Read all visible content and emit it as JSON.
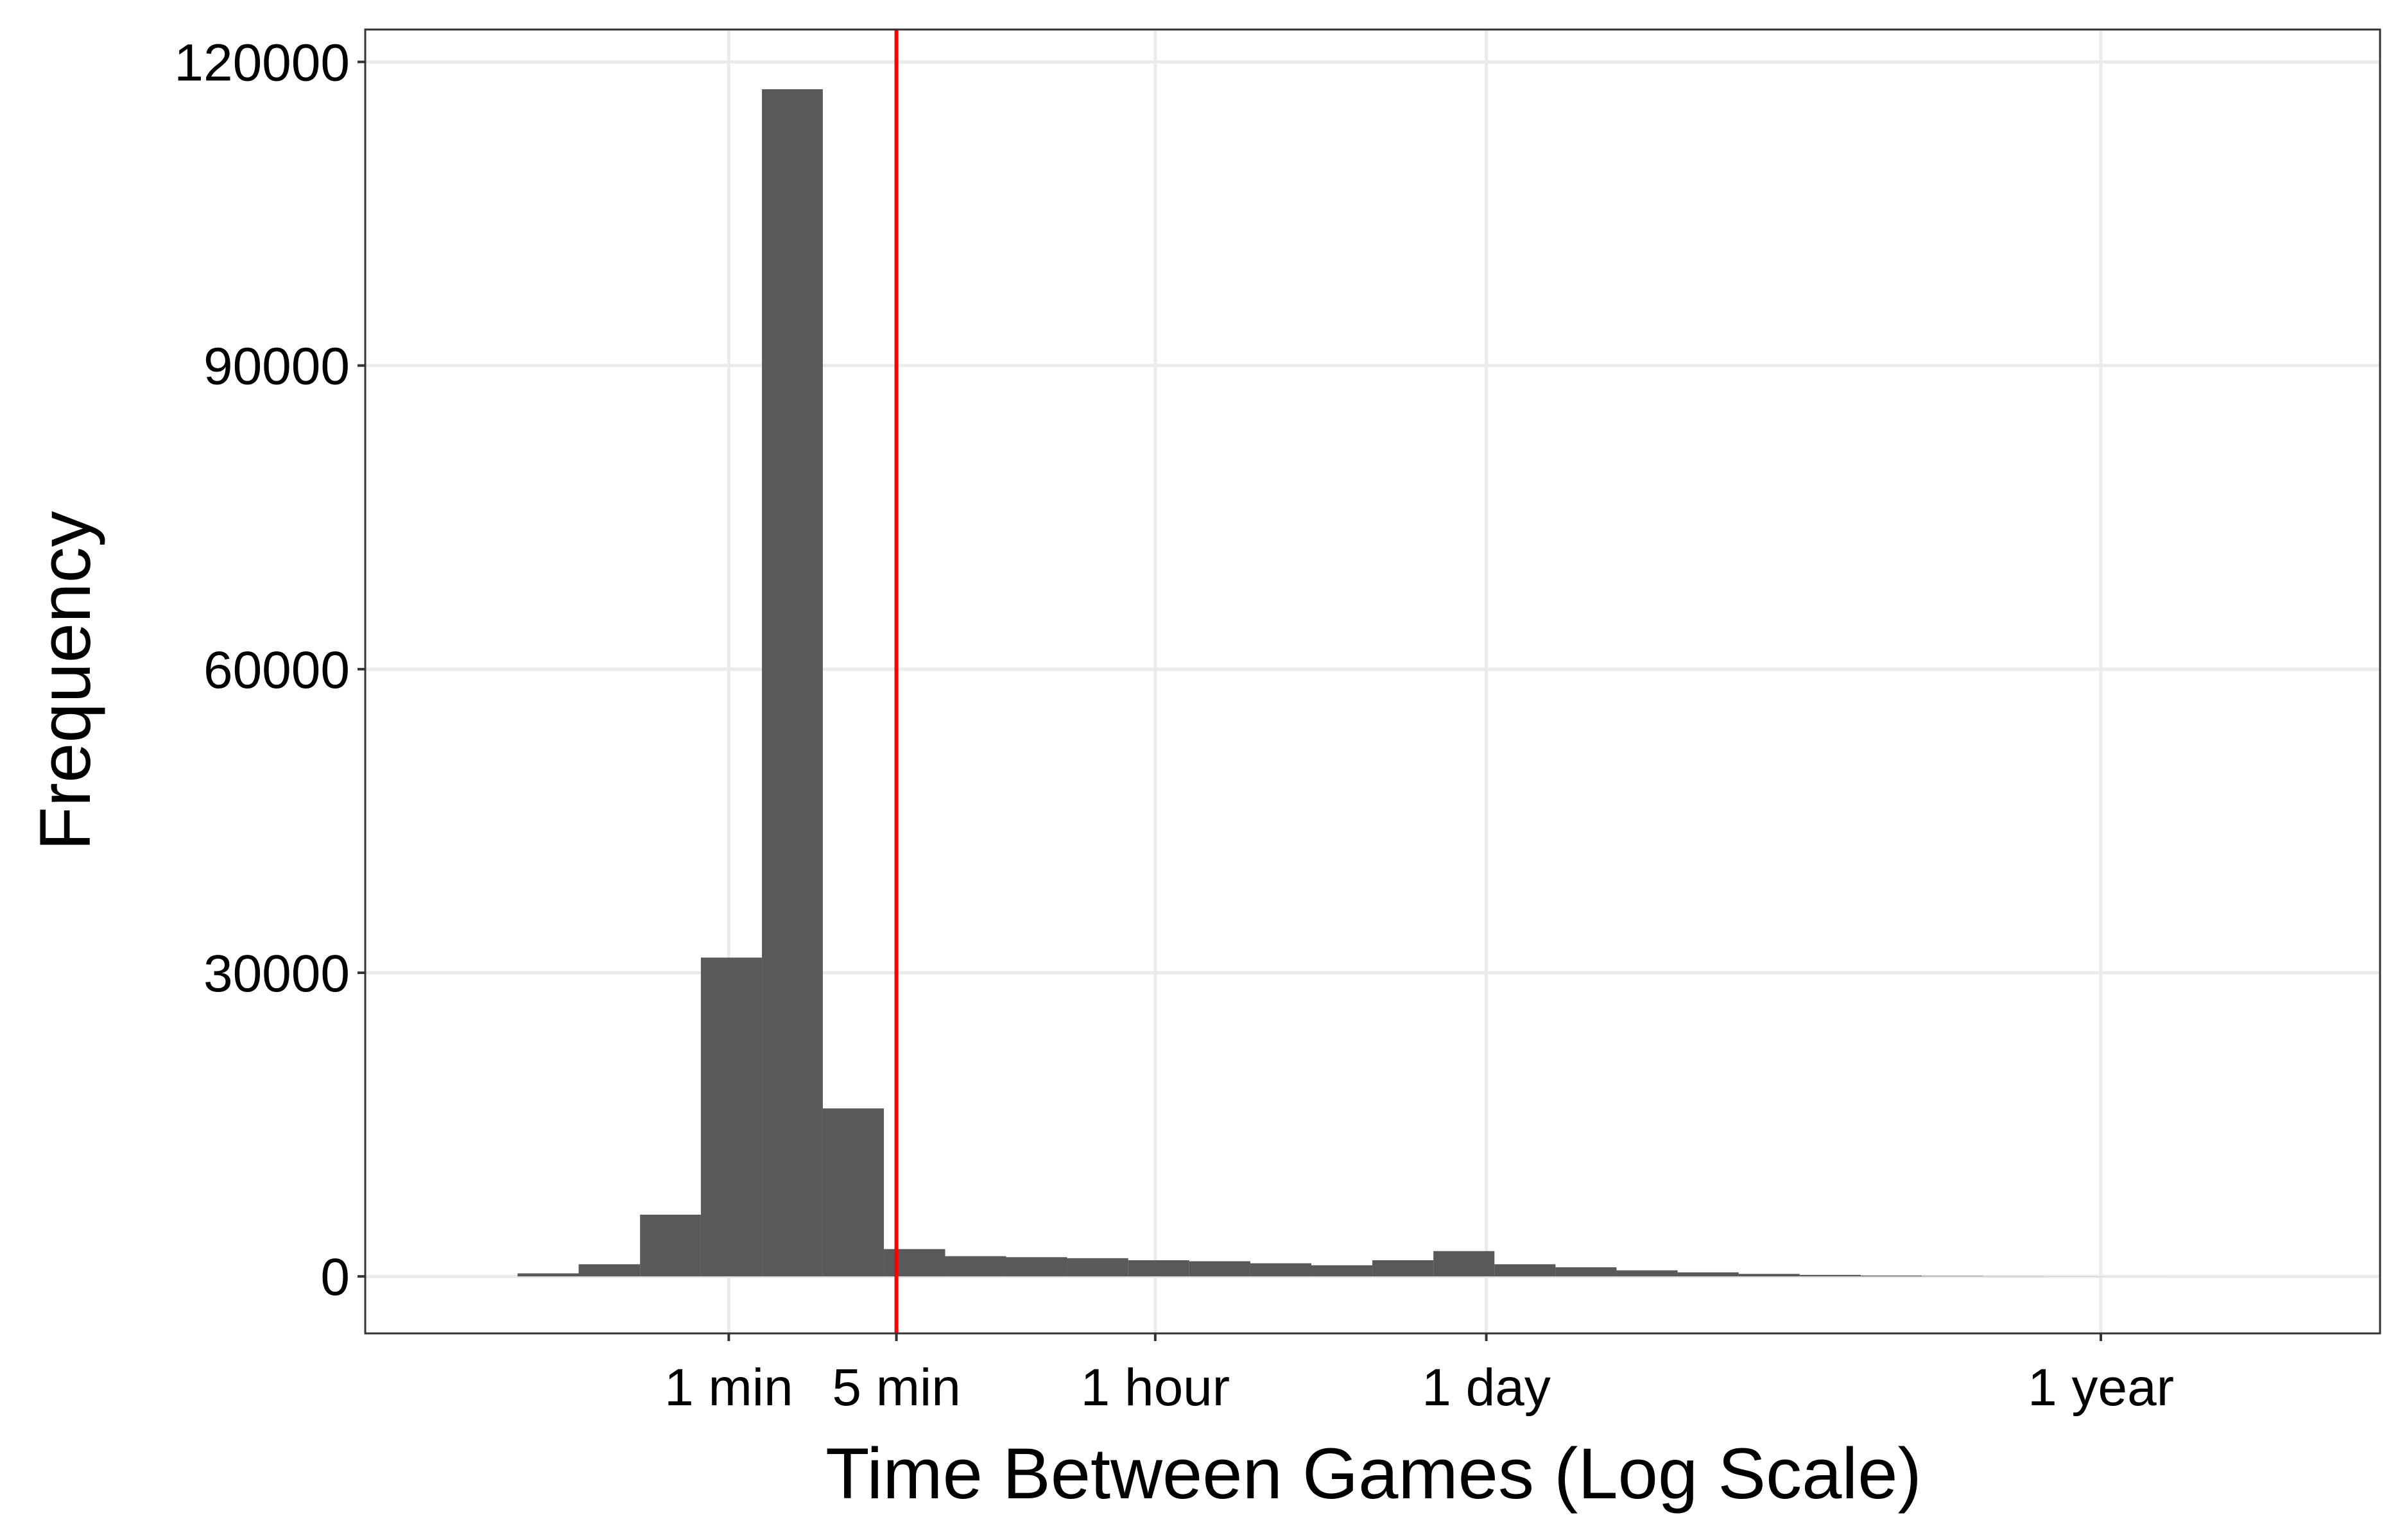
{
  "chart_data": {
    "type": "histogram",
    "x_label": "Time Between Games (Log Scale)",
    "y_label": "Frequency",
    "xscale": "log",
    "bins": [
      4.4,
      7.9,
      14.2,
      25.6,
      45.9,
      82.5,
      148,
      266,
      479,
      860,
      1545,
      2777,
      4989,
      8966,
      16106,
      28940,
      52000,
      93430,
      167900,
      301700,
      542000,
      974000,
      1750000,
      3145000,
      5650000,
      10150000,
      18240000,
      32770000,
      58880000,
      105800000,
      190100000
    ],
    "counts": [
      0,
      300,
      1200,
      6100,
      31500,
      117300,
      16600,
      2700,
      2000,
      1900,
      1800,
      1600,
      1500,
      1300,
      1100,
      1600,
      2500,
      1200,
      900,
      600,
      400,
      250,
      150,
      80,
      40,
      20,
      10,
      5,
      0,
      0
    ],
    "color": "#595959",
    "xlim": [
      1.83,
      460000000
    ],
    "ylim": [
      -5630,
      123200
    ],
    "xticks": [
      {
        "value": 60,
        "label": "1 min"
      },
      {
        "value": 300,
        "label": "5 min"
      },
      {
        "value": 3600,
        "label": "1 hour"
      },
      {
        "value": 86400,
        "label": "1 day"
      },
      {
        "value": 31536000,
        "label": "1 year"
      }
    ],
    "yticks": [
      0,
      30000,
      60000,
      90000,
      120000
    ],
    "grid": true,
    "vline": {
      "x": 300,
      "color": "#ff0000"
    }
  }
}
